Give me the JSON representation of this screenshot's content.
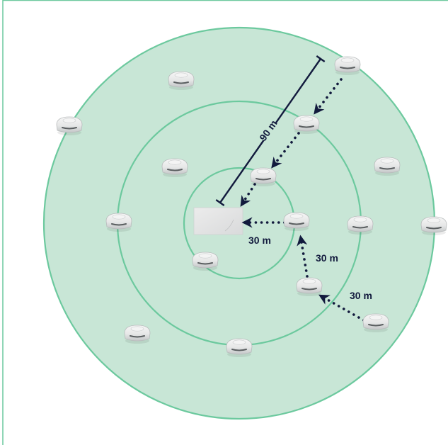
{
  "diagram": {
    "colors": {
      "zone_fill": "#c8e6d6",
      "zone_stroke": "#6cc99e",
      "frame": "#6cc99e",
      "arrow": "#121a3d",
      "detector_body": "#e9eaea",
      "detector_shade": "#b9bcbd",
      "hub": "#e3e4e5"
    },
    "labels": {
      "range_total": "90 m",
      "hop_hub": "30 m",
      "hop_middle": "30 m",
      "hop_outer": "30 m"
    },
    "icons": {
      "hub": "hub-icon",
      "detector": "smoke-detector-icon"
    }
  }
}
